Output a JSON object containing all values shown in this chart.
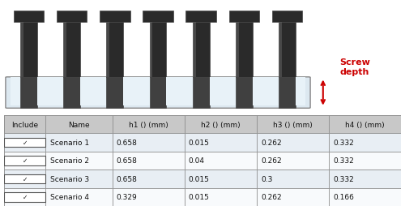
{
  "columns": [
    "Include",
    "Name",
    "h1 () (mm)",
    "h2 () (mm)",
    "h3 () (mm)",
    "h4 () (mm)"
  ],
  "rows": [
    [
      "✓",
      "Scenario 1",
      "0.658",
      "0.015",
      "0.262",
      "0.332"
    ],
    [
      "✓",
      "Scenario 2",
      "0.658",
      "0.04",
      "0.262",
      "0.332"
    ],
    [
      "✓",
      "Scenario 3",
      "0.658",
      "0.015",
      "0.3",
      "0.332"
    ],
    [
      "✓",
      "Scenario 4",
      "0.329",
      "0.015",
      "0.262",
      "0.166"
    ]
  ],
  "header_bg": "#c8c8c8",
  "row_bg_odd": "#e8eef4",
  "row_bg_even": "#f8fafc",
  "border_color": "#888888",
  "text_color": "#111111",
  "screw_label_color": "#cc0000",
  "num_screws": 7,
  "plate_facecolor": "#dce8f0",
  "plate_edgecolor": "#888888",
  "shaft_color": "#2a2a2a",
  "shaft_edge_color": "#444444",
  "head_color": "#2a2a2a",
  "fig_width": 5.0,
  "fig_height": 2.55
}
